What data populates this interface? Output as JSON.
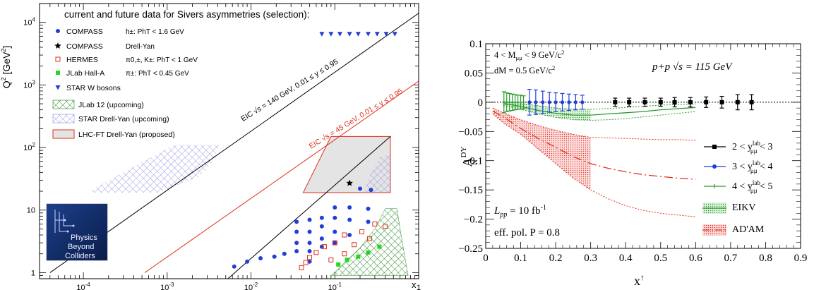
{
  "chart_data": [
    {
      "type": "scatter",
      "title": "current and future data for Sivers asymmetries (selection):",
      "xlabel": "x",
      "ylabel": "Q",
      "ylabel_sup": "2",
      "ylabel_unit": "[GeV",
      "ylabel_unit_sup": "2",
      "ylabel_unit_close": "]",
      "x_scale": "log",
      "y_scale": "log",
      "xlim": [
        3e-05,
        1
      ],
      "ylim": [
        0.8,
        20000
      ],
      "x_tick_labels": [
        {
          "base": "10",
          "exp": "-4",
          "value": 0.0001
        },
        {
          "base": "10",
          "exp": "-3",
          "value": 0.001
        },
        {
          "base": "10",
          "exp": "-2",
          "value": 0.01
        },
        {
          "base": "10",
          "exp": "-1",
          "value": 0.1
        },
        {
          "base": "1",
          "exp": "",
          "value": 1
        }
      ],
      "y_tick_labels": [
        {
          "base": "1",
          "exp": "",
          "value": 1
        },
        {
          "base": "10",
          "exp": "",
          "value": 10
        },
        {
          "base": "10",
          "exp": "2",
          "value": 100
        },
        {
          "base": "10",
          "exp": "3",
          "value": 1000
        },
        {
          "base": "10",
          "exp": "4",
          "value": 10000
        }
      ],
      "legend": [
        {
          "marker": "circle",
          "color": "#1f3fd6",
          "name": "COMPASS",
          "detail": "h±: PhT < 1.6 GeV"
        },
        {
          "marker": "star",
          "color": "#000000",
          "name": "COMPASS",
          "detail": "Drell-Yan"
        },
        {
          "marker": "square-open",
          "color": "#e0301e",
          "name": "HERMES",
          "detail": "π0,±, K±: PhT < 1 GeV"
        },
        {
          "marker": "square",
          "color": "#22d622",
          "name": "JLab Hall-A",
          "detail": "π±: PhT < 0.45 GeV"
        },
        {
          "marker": "triangle-down",
          "color": "#1f3fd6",
          "name": "STAR W bosons",
          "detail": ""
        },
        {
          "marker": "hatch-green",
          "color": "#2a8a2a",
          "name": "JLab 12 (upcoming)",
          "detail": ""
        },
        {
          "marker": "hatch-blue",
          "color": "#8c8ce0",
          "name": "STAR Drell-Yan (upcoming)",
          "detail": ""
        },
        {
          "marker": "box-gray",
          "color": "#e0301e",
          "name": "LHC-FT Drell-Yan (proposed)",
          "detail": ""
        }
      ],
      "annotations": [
        {
          "text": "EIC √s = 140 GeV, 0.01 ≤ y ≤ 0.95",
          "color": "#000000"
        },
        {
          "text": "EIC √s = 45 GeV, 0.01 ≤ y ≤ 0.95",
          "color": "#e0301e"
        }
      ],
      "series": [
        {
          "name": "COMPASS",
          "marker": "circle",
          "color": "#1f3fd6",
          "points": [
            [
              0.0063,
              1.25
            ],
            [
              0.009,
              1.5
            ],
            [
              0.013,
              1.7
            ],
            [
              0.019,
              1.8
            ],
            [
              0.025,
              2.0
            ],
            [
              0.035,
              2.2
            ],
            [
              0.035,
              3.0
            ],
            [
              0.035,
              4.5
            ],
            [
              0.035,
              6.5
            ],
            [
              0.05,
              1.5
            ],
            [
              0.05,
              2.2
            ],
            [
              0.05,
              3.0
            ],
            [
              0.05,
              4.5
            ],
            [
              0.05,
              7.0
            ],
            [
              0.07,
              2.6
            ],
            [
              0.07,
              3.5
            ],
            [
              0.07,
              5.5
            ],
            [
              0.07,
              7.5
            ],
            [
              0.1,
              3.0
            ],
            [
              0.1,
              4.5
            ],
            [
              0.1,
              7.5
            ],
            [
              0.1,
              11.0
            ],
            [
              0.15,
              4.0
            ],
            [
              0.15,
              7.0
            ],
            [
              0.15,
              11.0
            ],
            [
              0.25,
              6.5
            ],
            [
              0.25,
              10.5
            ]
          ]
        },
        {
          "name": "COMPASS Drell-Yan",
          "marker": "star",
          "color": "#000000",
          "points": [
            [
              0.15,
              27
            ]
          ]
        },
        {
          "name": "STAR W bosons",
          "marker": "triangle-down",
          "color": "#1f3fd6",
          "points": [
            [
              0.07,
              6500
            ],
            [
              0.09,
              6500
            ],
            [
              0.115,
              6500
            ],
            [
              0.15,
              6500
            ],
            [
              0.19,
              6500
            ],
            [
              0.25,
              6500
            ],
            [
              0.32,
              6500
            ],
            [
              0.41,
              6500
            ],
            [
              0.52,
              6500
            ]
          ]
        },
        {
          "name": "HERMES",
          "marker": "square-open",
          "color": "#e0301e",
          "points": [
            [
              0.04,
              1.2
            ],
            [
              0.045,
              1.45
            ],
            [
              0.05,
              1.75
            ],
            [
              0.06,
              2.1
            ],
            [
              0.075,
              2.6
            ],
            [
              0.09,
              1.6
            ],
            [
              0.1,
              3.0
            ],
            [
              0.13,
              2.0
            ],
            [
              0.13,
              4.0
            ],
            [
              0.17,
              2.8
            ],
            [
              0.21,
              4.5
            ],
            [
              0.26,
              3.5
            ],
            [
              0.3,
              6.0
            ],
            [
              0.4,
              5.5
            ]
          ]
        },
        {
          "name": "JLab Hall-A",
          "marker": "square",
          "color": "#22d622",
          "points": [
            [
              0.11,
              1.35
            ],
            [
              0.14,
              1.6
            ],
            [
              0.19,
              1.8
            ],
            [
              0.25,
              2.1
            ],
            [
              0.34,
              2.6
            ]
          ]
        },
        {
          "name": "STAR Drell-Yan dots",
          "marker": "circle",
          "color": "#1f3fd6",
          "points": [
            [
              0.2,
              22
            ],
            [
              0.27,
              21
            ]
          ]
        }
      ]
    },
    {
      "type": "line",
      "title": "",
      "xlabel": "x",
      "xlabel_sup": "↑",
      "ylabel": "A",
      "ylabel_sup": "DY",
      "ylabel_sub": "N",
      "xlim": [
        0,
        0.9
      ],
      "ylim": [
        -0.25,
        0.1
      ],
      "x_ticks": [
        0,
        0.1,
        0.2,
        0.3,
        0.4,
        0.5,
        0.6,
        0.7,
        0.8,
        0.9
      ],
      "x_tick_labels": [
        "0",
        "0.1",
        "0.2",
        "0.3",
        "0.4",
        "0.5",
        "0.6",
        "0.7",
        "0.8",
        "0.9"
      ],
      "y_ticks": [
        -0.25,
        -0.2,
        -0.15,
        -0.1,
        -0.05,
        0,
        0.05,
        0.1
      ],
      "y_tick_labels": [
        "−0.25",
        "−0.2",
        "−0.15",
        "−0.1",
        "−0.05",
        "0",
        "0.05",
        "0.1"
      ],
      "text_top_left_1": "4 < M",
      "text_top_left_1_sub": "μμ",
      "text_top_left_1_tail": " < 9 GeV/c",
      "text_top_left_1_sup": "2",
      "text_top_left_2": "dM = 0.5 GeV/c",
      "text_top_left_2_sup": "2",
      "text_top_right": "p+p  √s = 115 GeV",
      "text_lumi": "L",
      "text_lumi_sub": "pp",
      "text_lumi_tail": " = 10 fb",
      "text_lumi_sup": "-1",
      "text_pol": "eff. pol. P = 0.8",
      "legend": [
        {
          "text_pre": "2 < y",
          "sup": "lab",
          "sub": "μμ",
          "text_post": " < 3",
          "color": "#000000",
          "marker": "square"
        },
        {
          "text_pre": "3 < y",
          "sup": "lab",
          "sub": "μμ",
          "text_post": " < 4",
          "color": "#1f3fd6",
          "marker": "circle"
        },
        {
          "text_pre": "4 < y",
          "sup": "lab",
          "sub": "μμ",
          "text_post": " < 5",
          "color": "#2a9a2a",
          "marker": "plus"
        },
        {
          "text_pre": "EIKV",
          "sup": "",
          "sub": "",
          "text_post": "",
          "color": "#2a9a2a",
          "marker": "band-green"
        },
        {
          "text_pre": "AD'AM",
          "sup": "",
          "sub": "",
          "text_post": "",
          "color": "#e0301e",
          "marker": "band-red"
        }
      ],
      "series": [
        {
          "name": "2 < y < 3",
          "color": "#000000",
          "x": [
            0.37,
            0.41,
            0.455,
            0.5,
            0.54,
            0.585,
            0.63,
            0.675,
            0.72,
            0.76
          ],
          "y": [
            0,
            0,
            0,
            0,
            0,
            0,
            0,
            0,
            0,
            0
          ],
          "err": [
            0.007,
            0.007,
            0.007,
            0.007,
            0.008,
            0.008,
            0.009,
            0.01,
            0.013,
            0.013
          ]
        },
        {
          "name": "3 < y < 4",
          "color": "#1f3fd6",
          "x": [
            0.125,
            0.143,
            0.163,
            0.182,
            0.2,
            0.219,
            0.238,
            0.257,
            0.276
          ],
          "y": [
            0,
            0,
            0,
            0,
            0,
            0,
            0,
            0,
            0
          ],
          "err": [
            0.022,
            0.021,
            0.019,
            0.017,
            0.016,
            0.015,
            0.014,
            0.013,
            0.012
          ]
        },
        {
          "name": "4 < y < 5",
          "color": "#2a9a2a",
          "x": [
            0.052,
            0.06,
            0.068,
            0.076,
            0.084,
            0.092,
            0.1,
            0.108
          ],
          "y": [
            0,
            0,
            0,
            0,
            0,
            0,
            0,
            0
          ],
          "err": [
            0.018,
            0.016,
            0.015,
            0.014,
            0.013,
            0.012,
            0.012,
            0.011
          ]
        }
      ],
      "bands": [
        {
          "name": "EIKV",
          "color": "#2a9a2a",
          "x": [
            0.05,
            0.1,
            0.15,
            0.2,
            0.25,
            0.3,
            0.35,
            0.4,
            0.45,
            0.5,
            0.55,
            0.6
          ],
          "lower": [
            -0.006,
            -0.012,
            -0.02,
            -0.026,
            -0.03,
            -0.031,
            -0.03,
            -0.028,
            -0.025,
            -0.022,
            -0.019,
            -0.016
          ],
          "center": [
            -0.002,
            -0.007,
            -0.014,
            -0.019,
            -0.022,
            -0.022,
            -0.02,
            -0.018,
            -0.016,
            -0.013,
            -0.011,
            -0.009
          ],
          "upper": [
            0.002,
            -0.002,
            -0.006,
            -0.01,
            -0.012,
            -0.012,
            -0.011,
            -0.009,
            -0.007,
            -0.005,
            -0.004,
            -0.003
          ],
          "filled_until": 0.3
        },
        {
          "name": "AD'AM",
          "color": "#e0301e",
          "x": [
            0.02,
            0.05,
            0.1,
            0.15,
            0.2,
            0.25,
            0.3,
            0.35,
            0.4,
            0.45,
            0.5,
            0.55,
            0.6
          ],
          "lower": [
            -0.02,
            -0.035,
            -0.055,
            -0.08,
            -0.105,
            -0.13,
            -0.15,
            -0.165,
            -0.177,
            -0.185,
            -0.19,
            -0.193,
            -0.196
          ],
          "center": [
            -0.015,
            -0.025,
            -0.045,
            -0.062,
            -0.077,
            -0.093,
            -0.105,
            -0.113,
            -0.119,
            -0.124,
            -0.127,
            -0.13,
            -0.132
          ],
          "upper": [
            -0.01,
            -0.018,
            -0.03,
            -0.04,
            -0.048,
            -0.055,
            -0.06,
            -0.061,
            -0.062,
            -0.063,
            -0.064,
            -0.064,
            -0.065
          ],
          "filled_until": 0.3
        }
      ]
    }
  ],
  "logo": {
    "lines": [
      "Physics",
      "Beyond",
      "Colliders"
    ]
  }
}
